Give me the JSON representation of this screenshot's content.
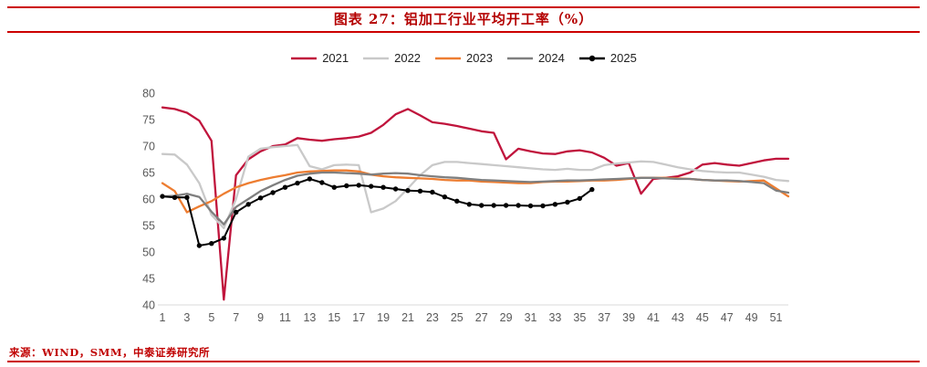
{
  "header": {
    "title": "图表 27：铝加工行业平均开工率（%）"
  },
  "footer": {
    "source": "来源：WIND，SMM，中泰证券研究所"
  },
  "colors": {
    "accent_red": "#cc0000",
    "title_red": "#b40000",
    "axis_text": "#595959",
    "axis_line": "#d9d9d9"
  },
  "chart_data": {
    "type": "line",
    "title": "图表 27：铝加工行业平均开工率（%）",
    "xlabel": "",
    "ylabel": "",
    "xlim": [
      1,
      52
    ],
    "ylim": [
      40,
      80
    ],
    "yticks": [
      40,
      45,
      50,
      55,
      60,
      65,
      70,
      75,
      80
    ],
    "xticks": [
      1,
      3,
      5,
      7,
      9,
      11,
      13,
      15,
      17,
      19,
      21,
      23,
      25,
      27,
      29,
      31,
      33,
      35,
      37,
      39,
      41,
      43,
      45,
      47,
      49,
      51
    ],
    "grid": false,
    "legend_position": "top",
    "x": [
      1,
      2,
      3,
      4,
      5,
      6,
      7,
      8,
      9,
      10,
      11,
      12,
      13,
      14,
      15,
      16,
      17,
      18,
      19,
      20,
      21,
      22,
      23,
      24,
      25,
      26,
      27,
      28,
      29,
      30,
      31,
      32,
      33,
      34,
      35,
      36,
      37,
      38,
      39,
      40,
      41,
      42,
      43,
      44,
      45,
      46,
      47,
      48,
      49,
      50,
      51,
      52
    ],
    "series": [
      {
        "name": "2021",
        "color": "#c0143c",
        "width": 2.3,
        "marker": false,
        "values": [
          77.3,
          77.0,
          76.3,
          74.8,
          71.0,
          41.0,
          64.5,
          67.5,
          69.0,
          70.0,
          70.3,
          71.5,
          71.2,
          71.0,
          71.3,
          71.5,
          71.8,
          72.5,
          74.0,
          76.0,
          77.0,
          75.8,
          74.5,
          74.2,
          73.8,
          73.3,
          72.8,
          72.5,
          67.5,
          69.5,
          69.0,
          68.6,
          68.5,
          69.0,
          69.2,
          68.8,
          67.8,
          66.3,
          66.8,
          61.0,
          63.8,
          64.0,
          64.3,
          65.0,
          66.5,
          66.8,
          66.5,
          66.3,
          66.8,
          67.3,
          67.6,
          67.6
        ]
      },
      {
        "name": "2022",
        "color": "#c9c9c9",
        "width": 2.3,
        "marker": false,
        "values": [
          68.5,
          68.4,
          66.5,
          63.0,
          57.0,
          54.5,
          60.0,
          68.0,
          69.5,
          69.8,
          70.0,
          70.2,
          66.2,
          65.6,
          66.4,
          66.5,
          66.4,
          57.5,
          58.2,
          59.6,
          62.0,
          64.5,
          66.4,
          67.0,
          67.0,
          66.8,
          66.6,
          66.4,
          66.2,
          66.0,
          65.8,
          65.6,
          65.5,
          65.7,
          65.5,
          65.5,
          66.4,
          66.7,
          66.9,
          67.1,
          67.0,
          66.5,
          66.0,
          65.6,
          65.3,
          65.1,
          65.0,
          65.0,
          64.6,
          64.2,
          63.6,
          63.4
        ]
      },
      {
        "name": "2023",
        "color": "#ed7d31",
        "width": 2.3,
        "marker": false,
        "values": [
          63.0,
          61.5,
          57.5,
          58.6,
          59.6,
          61.0,
          62.2,
          63.0,
          63.6,
          64.1,
          64.5,
          65.0,
          65.2,
          65.3,
          65.4,
          65.4,
          65.2,
          64.6,
          64.3,
          64.1,
          64.0,
          63.9,
          63.8,
          63.6,
          63.5,
          63.5,
          63.3,
          63.2,
          63.1,
          63.0,
          63.0,
          63.2,
          63.3,
          63.3,
          63.4,
          63.5,
          63.5,
          63.6,
          63.8,
          64.0,
          64.0,
          64.0,
          63.9,
          63.8,
          63.6,
          63.5,
          63.4,
          63.3,
          63.4,
          63.5,
          62.0,
          60.5
        ]
      },
      {
        "name": "2024",
        "color": "#7f7f7f",
        "width": 2.3,
        "marker": false,
        "values": [
          60.5,
          60.6,
          61.0,
          60.4,
          57.6,
          55.2,
          58.5,
          60.0,
          61.5,
          62.6,
          63.6,
          64.4,
          64.8,
          65.0,
          65.0,
          64.9,
          64.8,
          64.6,
          64.8,
          64.9,
          64.8,
          64.5,
          64.3,
          64.1,
          64.0,
          63.8,
          63.6,
          63.5,
          63.4,
          63.3,
          63.2,
          63.3,
          63.4,
          63.5,
          63.5,
          63.6,
          63.7,
          63.8,
          63.9,
          64.0,
          64.0,
          63.9,
          63.8,
          63.8,
          63.6,
          63.5,
          63.5,
          63.4,
          63.2,
          63.0,
          61.6,
          61.2
        ]
      },
      {
        "name": "2025",
        "color": "#000000",
        "width": 2.0,
        "marker": true,
        "values": [
          60.5,
          60.3,
          60.3,
          51.2,
          51.6,
          52.6,
          57.5,
          59.0,
          60.2,
          61.2,
          62.2,
          63.0,
          63.8,
          63.1,
          62.2,
          62.5,
          62.6,
          62.4,
          62.2,
          61.9,
          61.6,
          61.5,
          61.3,
          60.4,
          59.6,
          59.0,
          58.8,
          58.8,
          58.8,
          58.8,
          58.7,
          58.7,
          59.0,
          59.4,
          60.1,
          61.8
        ]
      }
    ]
  }
}
